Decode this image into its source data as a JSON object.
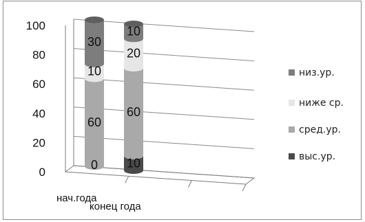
{
  "chart_data": {
    "type": "bar",
    "stacked": true,
    "three_d": true,
    "categories": [
      "нач.года",
      "конец года"
    ],
    "series": [
      {
        "name": "выс.ур.",
        "values": [
          0,
          10
        ],
        "color": "#4a4a4a"
      },
      {
        "name": "сред.ур.",
        "values": [
          60,
          60
        ],
        "color": "#a9a9a9"
      },
      {
        "name": "ниже ср.",
        "values": [
          10,
          20
        ],
        "color": "#e6e6e6"
      },
      {
        "name": "низ.ур.",
        "values": [
          30,
          10
        ],
        "color": "#7d7d7d"
      }
    ],
    "ylim": [
      0,
      100
    ],
    "yticks": [
      "0",
      "20",
      "40",
      "60",
      "80",
      "100"
    ],
    "grid": true,
    "legend_position": "right"
  }
}
